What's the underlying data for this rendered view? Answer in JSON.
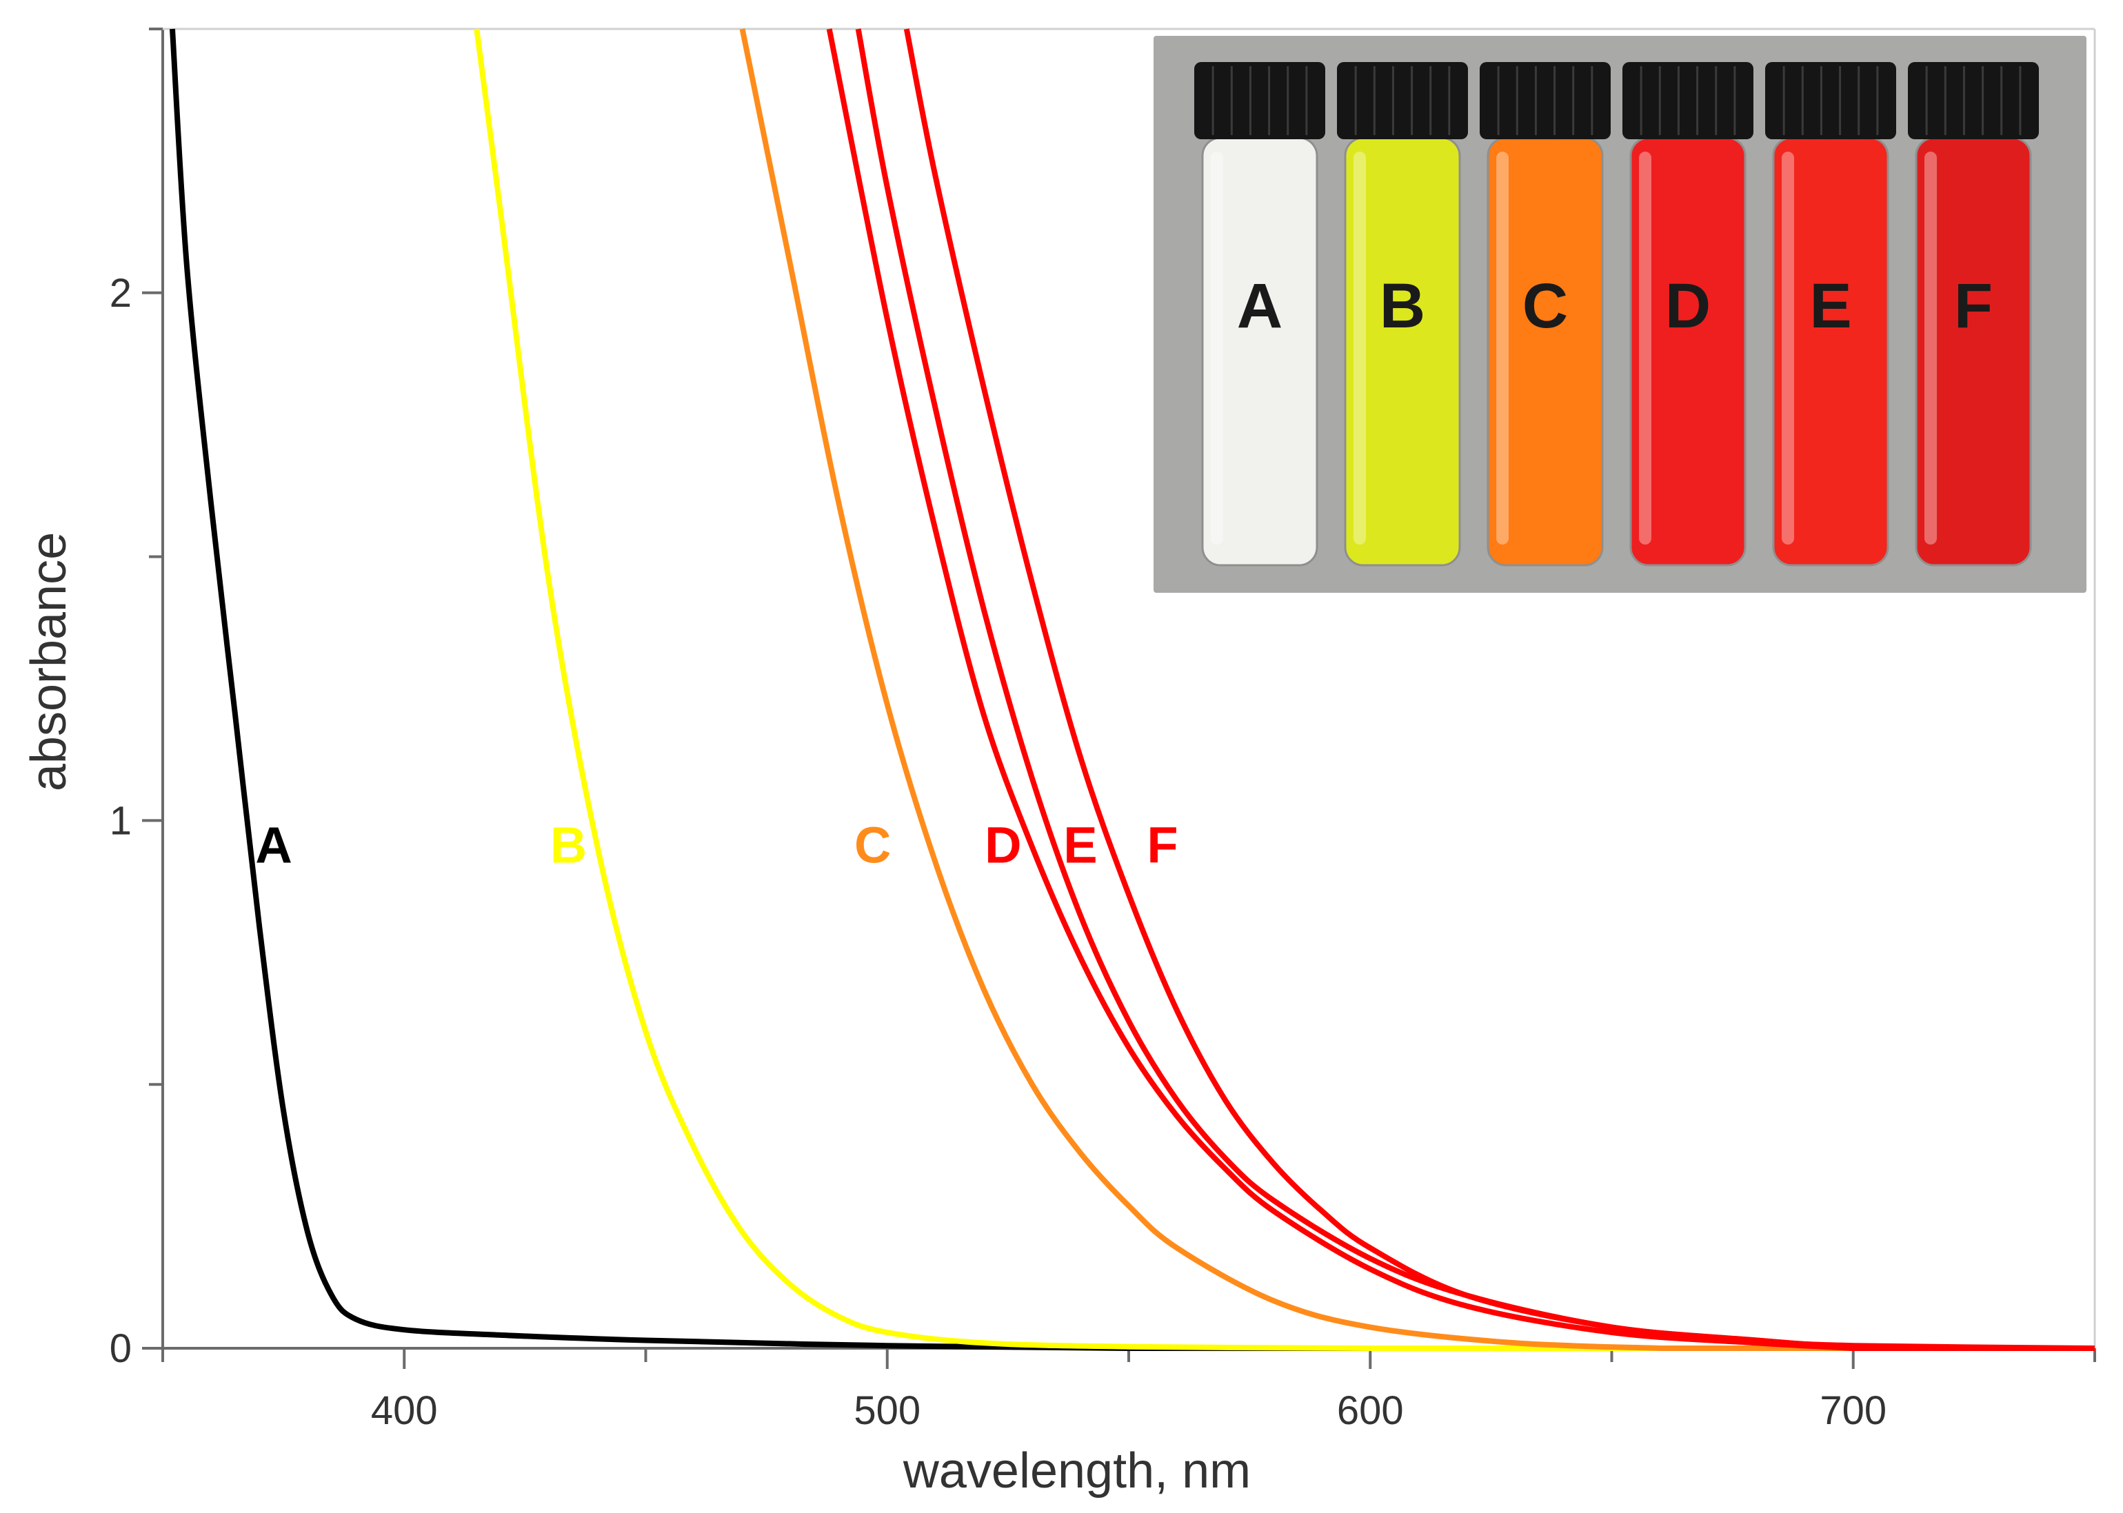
{
  "chart_data": {
    "type": "line",
    "title": "",
    "xlabel": "wavelength, nm",
    "ylabel": "absorbance",
    "xlim": [
      350,
      750
    ],
    "ylim": [
      0,
      2.5
    ],
    "x_ticks": [
      400,
      500,
      600,
      700
    ],
    "x_tick_labels": [
      "400",
      "500",
      "600",
      "700"
    ],
    "y_ticks": [
      0,
      1,
      2
    ],
    "y_tick_labels": [
      "0",
      "1",
      "2"
    ],
    "grid": false,
    "legend": "none",
    "series": [
      {
        "name": "A",
        "color": "#000000",
        "x": [
          352,
          355,
          360,
          365,
          370,
          375,
          380,
          385,
          390,
          400,
          420,
          450,
          500,
          550
        ],
        "y": [
          2.5,
          2.05,
          1.6,
          1.2,
          0.8,
          0.45,
          0.22,
          0.1,
          0.055,
          0.035,
          0.025,
          0.015,
          0.005,
          0.0
        ]
      },
      {
        "name": "B",
        "color": "#ffff00",
        "x": [
          415,
          420,
          430,
          440,
          450,
          460,
          470,
          480,
          490,
          500,
          520,
          550,
          600
        ],
        "y": [
          2.5,
          2.15,
          1.45,
          0.95,
          0.6,
          0.38,
          0.22,
          0.12,
          0.06,
          0.03,
          0.01,
          0.003,
          0.0
        ]
      },
      {
        "name": "C",
        "color": "#ff8c1a",
        "x": [
          470,
          480,
          490,
          500,
          510,
          520,
          530,
          540,
          550,
          560,
          580,
          600,
          630,
          660
        ],
        "y": [
          2.5,
          2.05,
          1.6,
          1.22,
          0.92,
          0.68,
          0.5,
          0.37,
          0.27,
          0.19,
          0.09,
          0.04,
          0.01,
          0.0
        ]
      },
      {
        "name": "D",
        "color": "#ff0000",
        "x": [
          488,
          500,
          510,
          520,
          530,
          540,
          550,
          560,
          570,
          580,
          600,
          620,
          650,
          680,
          700
        ],
        "y": [
          2.5,
          1.95,
          1.55,
          1.2,
          0.95,
          0.74,
          0.57,
          0.44,
          0.34,
          0.26,
          0.15,
          0.08,
          0.03,
          0.01,
          0.0
        ]
      },
      {
        "name": "E",
        "color": "#ff0000",
        "x": [
          494,
          500,
          510,
          520,
          530,
          540,
          550,
          560,
          570,
          580,
          600,
          620,
          650,
          680,
          700
        ],
        "y": [
          2.5,
          2.2,
          1.78,
          1.4,
          1.08,
          0.82,
          0.62,
          0.47,
          0.36,
          0.28,
          0.17,
          0.1,
          0.04,
          0.015,
          0.0
        ]
      },
      {
        "name": "F",
        "color": "#ff0000",
        "x": [
          504,
          510,
          520,
          530,
          540,
          550,
          560,
          570,
          580,
          590,
          600,
          620,
          650,
          680,
          700,
          750
        ],
        "y": [
          2.5,
          2.22,
          1.82,
          1.45,
          1.12,
          0.86,
          0.64,
          0.47,
          0.35,
          0.26,
          0.19,
          0.1,
          0.04,
          0.015,
          0.005,
          0.0
        ]
      }
    ],
    "annotations": [
      {
        "text": "A",
        "color": "#000000",
        "x": 373,
        "y": 0.92
      },
      {
        "text": "B",
        "color": "#ffff00",
        "x": 434,
        "y": 0.92
      },
      {
        "text": "C",
        "color": "#ff8c1a",
        "x": 497,
        "y": 0.92
      },
      {
        "text": "D",
        "color": "#ff0000",
        "x": 524,
        "y": 0.92
      },
      {
        "text": "E",
        "color": "#ff0000",
        "x": 540,
        "y": 0.92
      },
      {
        "text": "F",
        "color": "#ff0000",
        "x": 557,
        "y": 0.92
      }
    ]
  },
  "inset_photo": {
    "background": "#a9a9a7",
    "cap_color": "#151515",
    "vials": [
      {
        "letter": "A",
        "color": "#f1f1ee"
      },
      {
        "letter": "B",
        "color": "#dce81d"
      },
      {
        "letter": "C",
        "color": "#ff7b14"
      },
      {
        "letter": "D",
        "color": "#ef1f1f"
      },
      {
        "letter": "E",
        "color": "#f2261d"
      },
      {
        "letter": "F",
        "color": "#e01d1d"
      }
    ]
  }
}
